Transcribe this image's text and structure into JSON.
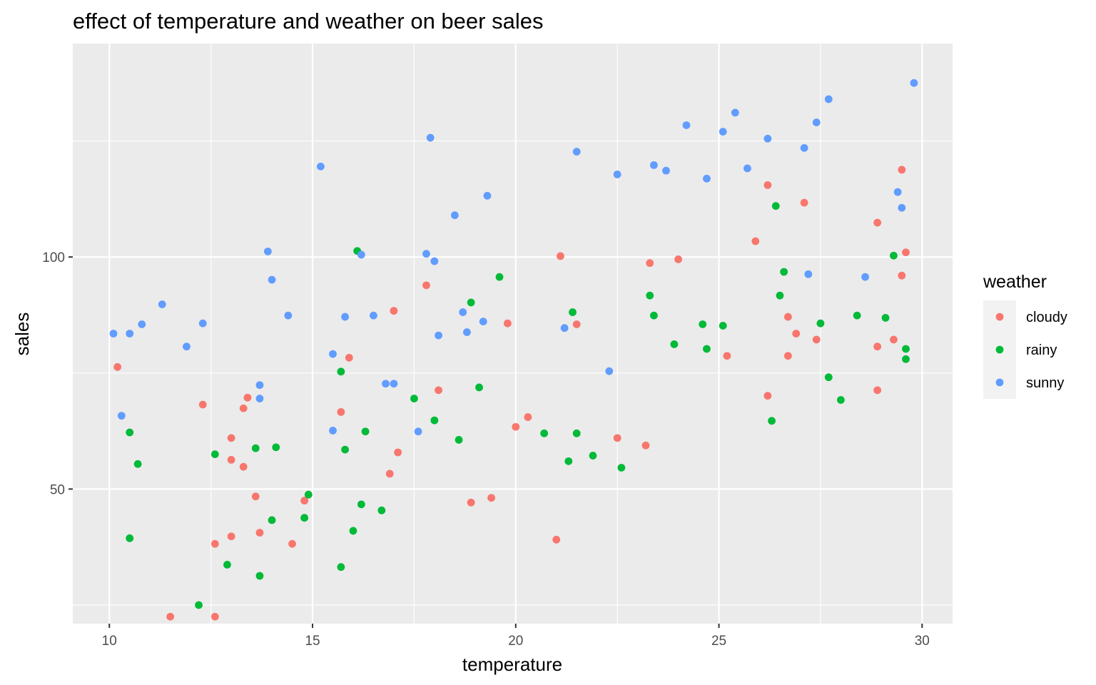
{
  "chart_data": {
    "type": "scatter",
    "title": "effect of temperature and weather on beer sales",
    "xlabel": "temperature",
    "ylabel": "sales",
    "xlim": [
      9.1,
      30.75
    ],
    "ylim": [
      21.0,
      146.0
    ],
    "x_ticks": [
      10,
      15,
      20,
      25,
      30
    ],
    "y_ticks": [
      50,
      100
    ],
    "grid": true,
    "legend": {
      "title": "weather",
      "position": "right"
    },
    "series": [
      {
        "name": "cloudy",
        "color": "#F8766D",
        "points": [
          [
            10.2,
            76.3
          ],
          [
            11.5,
            22.5
          ],
          [
            12.3,
            68.2
          ],
          [
            12.6,
            38.2
          ],
          [
            12.6,
            22.5
          ],
          [
            13.0,
            61.0
          ],
          [
            13.0,
            56.3
          ],
          [
            13.0,
            39.8
          ],
          [
            13.3,
            67.4
          ],
          [
            13.3,
            54.8
          ],
          [
            13.4,
            69.7
          ],
          [
            13.6,
            48.4
          ],
          [
            13.7,
            40.6
          ],
          [
            14.5,
            38.2
          ],
          [
            14.8,
            47.5
          ],
          [
            15.7,
            66.6
          ],
          [
            15.9,
            78.3
          ],
          [
            16.9,
            53.3
          ],
          [
            17.0,
            88.4
          ],
          [
            17.1,
            57.9
          ],
          [
            17.8,
            93.9
          ],
          [
            18.1,
            71.3
          ],
          [
            18.9,
            47.1
          ],
          [
            19.4,
            48.1
          ],
          [
            19.8,
            85.7
          ],
          [
            20.0,
            63.4
          ],
          [
            20.3,
            65.5
          ],
          [
            21.0,
            39.1
          ],
          [
            21.1,
            100.2
          ],
          [
            21.5,
            85.5
          ],
          [
            22.5,
            61.0
          ],
          [
            23.2,
            59.4
          ],
          [
            23.3,
            98.7
          ],
          [
            24.0,
            99.5
          ],
          [
            25.2,
            78.7
          ],
          [
            25.9,
            103.4
          ],
          [
            26.2,
            115.5
          ],
          [
            26.2,
            70.1
          ],
          [
            26.7,
            87.1
          ],
          [
            26.7,
            78.7
          ],
          [
            26.9,
            83.5
          ],
          [
            27.1,
            111.7
          ],
          [
            27.4,
            82.2
          ],
          [
            28.9,
            107.4
          ],
          [
            28.9,
            80.7
          ],
          [
            28.9,
            71.3
          ],
          [
            29.3,
            82.2
          ],
          [
            29.5,
            118.8
          ],
          [
            29.5,
            96.0
          ],
          [
            29.6,
            101.0
          ]
        ]
      },
      {
        "name": "rainy",
        "color": "#00BA38",
        "points": [
          [
            10.5,
            62.2
          ],
          [
            10.5,
            39.4
          ],
          [
            10.7,
            55.4
          ],
          [
            12.2,
            25.0
          ],
          [
            12.6,
            57.5
          ],
          [
            12.9,
            33.7
          ],
          [
            13.6,
            58.8
          ],
          [
            13.7,
            31.3
          ],
          [
            14.0,
            43.3
          ],
          [
            14.1,
            59.0
          ],
          [
            14.8,
            43.8
          ],
          [
            14.9,
            48.8
          ],
          [
            15.7,
            75.3
          ],
          [
            15.7,
            33.2
          ],
          [
            15.8,
            58.5
          ],
          [
            16.0,
            41.0
          ],
          [
            16.1,
            101.3
          ],
          [
            16.2,
            46.7
          ],
          [
            16.3,
            62.4
          ],
          [
            16.7,
            45.4
          ],
          [
            17.5,
            69.5
          ],
          [
            18.0,
            64.8
          ],
          [
            18.6,
            60.6
          ],
          [
            18.9,
            90.2
          ],
          [
            19.1,
            71.9
          ],
          [
            19.6,
            95.7
          ],
          [
            20.7,
            62.0
          ],
          [
            21.3,
            56.0
          ],
          [
            21.4,
            88.1
          ],
          [
            21.5,
            62.0
          ],
          [
            21.9,
            57.2
          ],
          [
            22.6,
            54.6
          ],
          [
            23.3,
            91.7
          ],
          [
            23.4,
            87.4
          ],
          [
            23.9,
            81.2
          ],
          [
            24.6,
            85.5
          ],
          [
            24.7,
            80.2
          ],
          [
            25.1,
            85.2
          ],
          [
            26.3,
            64.7
          ],
          [
            26.4,
            111.0
          ],
          [
            26.5,
            91.7
          ],
          [
            26.6,
            96.8
          ],
          [
            27.5,
            85.7
          ],
          [
            27.7,
            74.1
          ],
          [
            28.0,
            69.2
          ],
          [
            28.4,
            87.4
          ],
          [
            29.1,
            86.9
          ],
          [
            29.3,
            100.3
          ],
          [
            29.6,
            80.2
          ],
          [
            29.6,
            78.0
          ]
        ]
      },
      {
        "name": "sunny",
        "color": "#619CFF",
        "points": [
          [
            10.1,
            83.5
          ],
          [
            10.3,
            65.8
          ],
          [
            10.5,
            83.5
          ],
          [
            10.8,
            85.5
          ],
          [
            11.3,
            89.8
          ],
          [
            11.9,
            80.7
          ],
          [
            12.3,
            85.7
          ],
          [
            13.7,
            72.4
          ],
          [
            13.7,
            69.5
          ],
          [
            13.9,
            101.2
          ],
          [
            14.0,
            95.1
          ],
          [
            14.4,
            87.4
          ],
          [
            15.2,
            119.5
          ],
          [
            15.5,
            79.1
          ],
          [
            15.5,
            62.6
          ],
          [
            15.8,
            87.1
          ],
          [
            16.2,
            100.5
          ],
          [
            16.5,
            87.4
          ],
          [
            16.8,
            72.7
          ],
          [
            17.0,
            72.7
          ],
          [
            17.6,
            62.4
          ],
          [
            17.8,
            100.7
          ],
          [
            17.9,
            125.7
          ],
          [
            18.0,
            99.1
          ],
          [
            18.1,
            83.1
          ],
          [
            18.5,
            109.0
          ],
          [
            18.7,
            88.1
          ],
          [
            18.8,
            83.8
          ],
          [
            19.2,
            86.1
          ],
          [
            19.3,
            113.2
          ],
          [
            21.2,
            84.7
          ],
          [
            21.5,
            122.7
          ],
          [
            22.3,
            75.4
          ],
          [
            22.5,
            117.8
          ],
          [
            23.4,
            119.8
          ],
          [
            23.7,
            118.6
          ],
          [
            24.2,
            128.4
          ],
          [
            24.7,
            116.9
          ],
          [
            25.1,
            127.0
          ],
          [
            25.4,
            131.1
          ],
          [
            25.7,
            119.1
          ],
          [
            26.2,
            125.5
          ],
          [
            27.1,
            123.5
          ],
          [
            27.2,
            96.3
          ],
          [
            27.4,
            129.0
          ],
          [
            27.7,
            134.0
          ],
          [
            28.6,
            95.7
          ],
          [
            29.4,
            114.0
          ],
          [
            29.5,
            110.6
          ],
          [
            29.8,
            137.5
          ]
        ]
      }
    ]
  }
}
